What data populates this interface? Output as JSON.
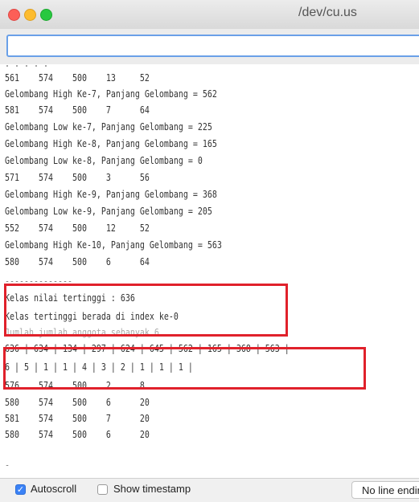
{
  "window": {
    "title": "/dev/cu.us"
  },
  "input": {
    "value": "",
    "placeholder": ""
  },
  "console": {
    "clipped_top": ". . . . .",
    "lines": [
      "561    574    500    13     52",
      "Gelombang High Ke-7, Panjang Gelombang = 562",
      "581    574    500    7      64",
      "Gelombang Low ke-7, Panjang Gelombang = 225",
      "Gelombang High Ke-8, Panjang Gelombang = 165",
      "Gelombang Low ke-8, Panjang Gelombang = 0",
      "571    574    500    3      56",
      "Gelombang High Ke-9, Panjang Gelombang = 368",
      "Gelombang Low ke-9, Panjang Gelombang = 205",
      "552    574    500    12     52",
      "Gelombang High Ke-10, Panjang Gelombang = 563",
      "580    574    500    6      64",
      "--------------",
      "Kelas nilai tertinggi : 636",
      "Kelas tertinggi berada di index ke-0",
      "Jumlah jumlah anggota sebanyak 6",
      "636 | 634 | 134 | 297 | 624 | 645 | 562 | 165 | 368 | 563 |",
      "6 | 5 | 1 | 1 | 4 | 3 | 2 | 1 | 1 | 1 |",
      "576    574    500    2      8",
      "580    574    500    6      20",
      "581    574    500    7      20",
      "580    574    500    6      20",
      "-"
    ]
  },
  "footer": {
    "autoscroll_label": "Autoscroll",
    "autoscroll_checked": true,
    "timestamp_label": "Show timestamp",
    "timestamp_checked": false,
    "line_ending": "No line ending"
  },
  "colors": {
    "highlight": "#e0212b",
    "accent": "#3b82f6"
  }
}
